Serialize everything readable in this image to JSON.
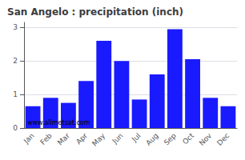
{
  "chart_data": {
    "type": "bar",
    "title": "San Angelo : precipitation (inch)",
    "categories": [
      "Jan",
      "Feb",
      "Mar",
      "Apr",
      "May",
      "Jun",
      "Jul",
      "Aug",
      "Sep",
      "Oct",
      "Nov",
      "Dec"
    ],
    "values": [
      0.65,
      0.9,
      0.75,
      1.4,
      2.6,
      2.0,
      0.85,
      1.6,
      2.95,
      2.05,
      0.9,
      0.65
    ],
    "color": "#1a1aff",
    "ylim": [
      0,
      3.15
    ],
    "yticks": [
      0,
      1,
      2,
      3
    ],
    "grid": true,
    "annotations": [
      "www.allmetsat.com"
    ]
  }
}
